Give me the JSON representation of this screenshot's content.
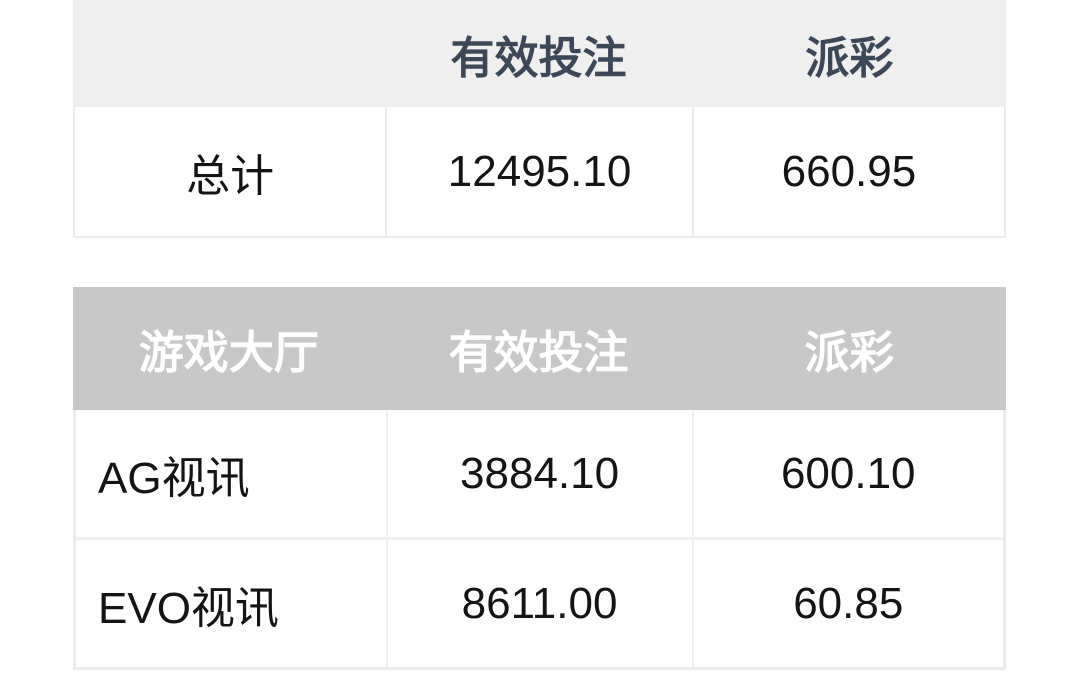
{
  "summary_table": {
    "headers": [
      "",
      "有效投注",
      "派彩"
    ],
    "row": {
      "label": "总计",
      "valid_bets": "12495.10",
      "payout": "660.95"
    }
  },
  "lobby_table": {
    "headers": [
      "游戏大厅",
      "有效投注",
      "派彩"
    ],
    "rows": [
      {
        "label": "AG视讯",
        "valid_bets": "3884.10",
        "payout": "600.10"
      },
      {
        "label": "EVO视讯",
        "valid_bets": "8611.00",
        "payout": "60.85"
      }
    ]
  },
  "colors": {
    "summary_header_bg": "#efefef",
    "summary_header_text": "#3c4858",
    "lobby_header_bg": "#c8c8c8",
    "lobby_header_text": "#ffffff",
    "body_text": "#141414",
    "border": "#ededed",
    "page_bg": "#ffffff"
  }
}
